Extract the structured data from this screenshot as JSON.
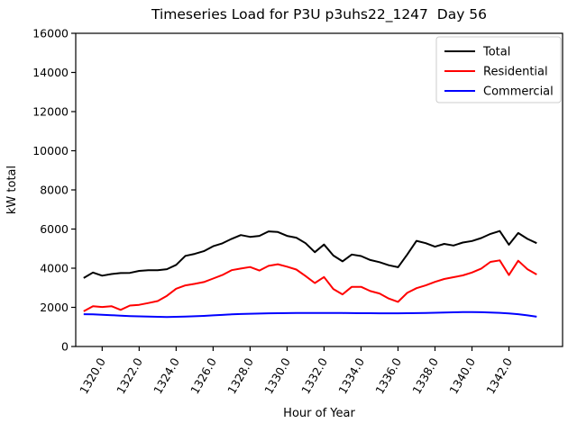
{
  "chart_data": {
    "type": "line",
    "title": "Timeseries Load for P3U p3uhs22_1247  Day 56",
    "xlabel": "Hour of Year",
    "ylabel": "kW total",
    "grid": false,
    "legend_position": "upper right",
    "xlim": [
      1318.57,
      1344.9
    ],
    "ylim": [
      0,
      16000
    ],
    "yticks": {
      "values": [
        0,
        2000,
        4000,
        6000,
        8000,
        10000,
        12000,
        14000,
        16000
      ],
      "labels": [
        "0",
        "2000",
        "4000",
        "6000",
        "8000",
        "10000",
        "12000",
        "14000",
        "16000"
      ]
    },
    "xticks": {
      "values": [
        1320,
        1322,
        1324,
        1326,
        1328,
        1330,
        1332,
        1334,
        1336,
        1338,
        1340,
        1342
      ],
      "labels": [
        "1320.0",
        "1322.0",
        "1324.0",
        "1326.0",
        "1328.0",
        "1330.0",
        "1332.0",
        "1334.0",
        "1336.0",
        "1338.0",
        "1340.0",
        "1342.0"
      ],
      "rotation_deg": 60
    },
    "x": [
      1319.0,
      1319.5,
      1320.0,
      1320.5,
      1321.0,
      1321.5,
      1322.0,
      1322.5,
      1323.0,
      1323.5,
      1324.0,
      1324.5,
      1325.0,
      1325.5,
      1326.0,
      1326.5,
      1327.0,
      1327.5,
      1328.0,
      1328.5,
      1329.0,
      1329.5,
      1330.0,
      1330.5,
      1331.0,
      1331.5,
      1332.0,
      1332.5,
      1333.0,
      1333.5,
      1334.0,
      1334.5,
      1335.0,
      1335.5,
      1336.0,
      1336.5,
      1337.0,
      1337.5,
      1338.0,
      1338.5,
      1339.0,
      1339.5,
      1340.0,
      1340.5,
      1341.0,
      1341.5,
      1342.0,
      1342.5,
      1343.0,
      1343.5
    ],
    "series": [
      {
        "name": "Total",
        "color": "#000000",
        "values": [
          3500,
          3780,
          3620,
          3700,
          3750,
          3760,
          3860,
          3900,
          3900,
          3950,
          4170,
          4630,
          4730,
          4870,
          5120,
          5270,
          5500,
          5690,
          5600,
          5650,
          5880,
          5850,
          5650,
          5560,
          5280,
          4820,
          5210,
          4650,
          4350,
          4700,
          4620,
          4420,
          4310,
          4150,
          4050,
          4700,
          5400,
          5280,
          5100,
          5240,
          5160,
          5310,
          5390,
          5540,
          5750,
          5900,
          5200,
          5800,
          5500,
          5280
        ]
      },
      {
        "name": "Residential",
        "color": "#ff0000",
        "values": [
          1800,
          2060,
          2020,
          2060,
          1870,
          2090,
          2130,
          2220,
          2320,
          2590,
          2950,
          3120,
          3200,
          3290,
          3470,
          3650,
          3900,
          3980,
          4060,
          3880,
          4120,
          4200,
          4080,
          3930,
          3600,
          3240,
          3550,
          2940,
          2660,
          3050,
          3050,
          2830,
          2710,
          2450,
          2280,
          2740,
          2980,
          3120,
          3300,
          3450,
          3540,
          3630,
          3780,
          3980,
          4320,
          4400,
          3650,
          4380,
          3950,
          3680
        ]
      },
      {
        "name": "Commercial",
        "color": "#0000ff",
        "values": [
          1650,
          1640,
          1620,
          1600,
          1575,
          1555,
          1540,
          1525,
          1515,
          1510,
          1515,
          1525,
          1545,
          1565,
          1590,
          1615,
          1640,
          1660,
          1675,
          1685,
          1695,
          1700,
          1705,
          1710,
          1710,
          1715,
          1715,
          1710,
          1710,
          1705,
          1700,
          1700,
          1695,
          1695,
          1695,
          1700,
          1705,
          1715,
          1725,
          1735,
          1745,
          1755,
          1760,
          1750,
          1740,
          1720,
          1690,
          1650,
          1590,
          1520
        ]
      }
    ]
  }
}
